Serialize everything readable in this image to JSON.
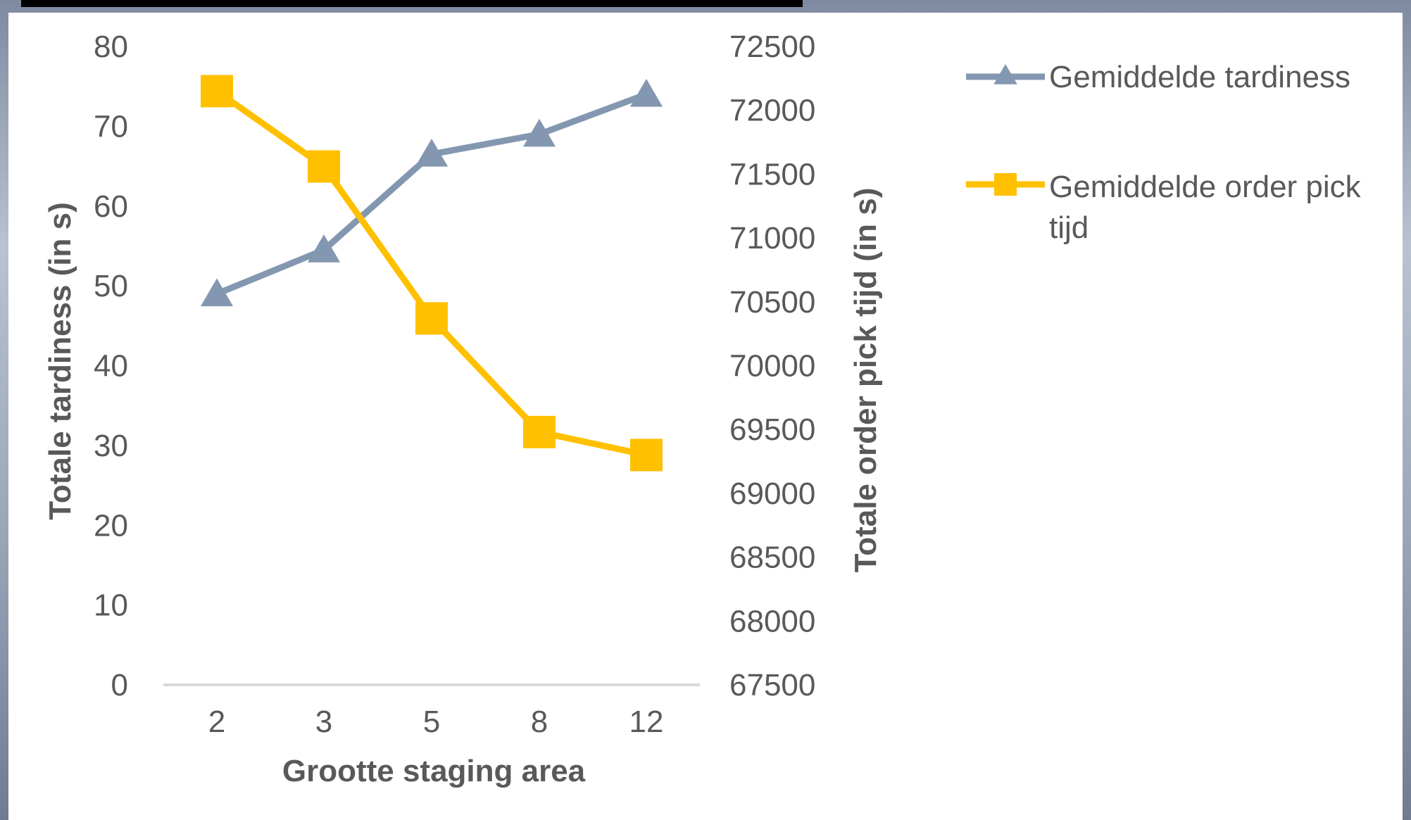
{
  "chart_data": {
    "type": "line",
    "categories": [
      "2",
      "3",
      "5",
      "8",
      "12"
    ],
    "xlabel": "Grootte staging area",
    "ylabel_left": "Totale tardiness (in s)",
    "ylabel_right": "Totale order pick tijd (in s)",
    "ylim_left": [
      0,
      80
    ],
    "ylim_right": [
      67500,
      72500
    ],
    "yticks_left": [
      "0",
      "10",
      "20",
      "30",
      "40",
      "50",
      "60",
      "70",
      "80"
    ],
    "yticks_right": [
      "67500",
      "68000",
      "68500",
      "69000",
      "69500",
      "70000",
      "70500",
      "71000",
      "71500",
      "72000",
      "72500"
    ],
    "grid": false,
    "legend_position": "right",
    "series": [
      {
        "name": "Gemiddelde tardiness",
        "axis": "left",
        "marker": "triangle",
        "color": "#8497b0",
        "values": [
          49,
          54.5,
          66.5,
          69,
          74
        ]
      },
      {
        "name": "Gemiddelde order pick tijd",
        "axis": "right",
        "marker": "square",
        "color": "#ffc000",
        "values": [
          72150,
          71560,
          70370,
          69480,
          69300
        ]
      }
    ]
  }
}
